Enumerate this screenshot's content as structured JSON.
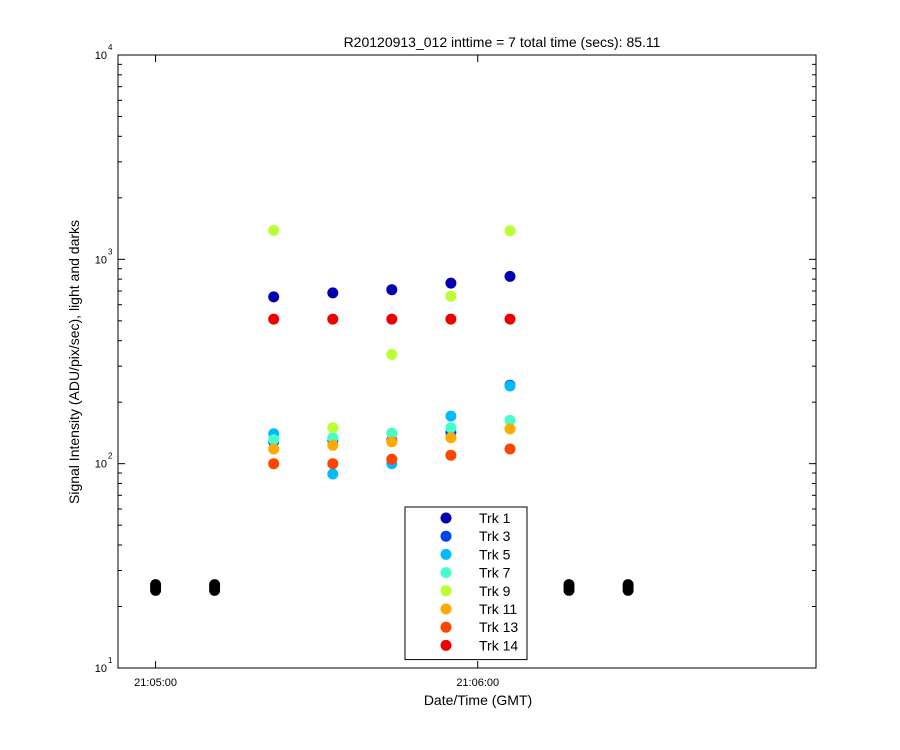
{
  "chart_data": {
    "type": "scatter",
    "title": "R20120913_012 inttime = 7 total time (secs): 85.11",
    "xlabel": "Date/Time (GMT)",
    "ylabel": "Signal Intensity (ADU/pix/sec), light and darks",
    "x_ticks": [
      {
        "time": "21:05:00",
        "label": "21:05:00"
      },
      {
        "time": "21:06:00",
        "label": "21:06:00"
      }
    ],
    "xlim": [
      "21:04:53",
      "21:07:03"
    ],
    "y_scale": "log",
    "ylim": [
      10,
      10000
    ],
    "y_ticks": [
      {
        "value": 10,
        "base": "10",
        "exp": "1"
      },
      {
        "value": 100,
        "base": "10",
        "exp": "2"
      },
      {
        "value": 1000,
        "base": "10",
        "exp": "3"
      },
      {
        "value": 10000,
        "base": "10",
        "exp": "4"
      }
    ],
    "grid": false,
    "legend_position": "bottom-center",
    "series": [
      {
        "name": "Trk 1",
        "color": "#0000b0",
        "x": [
          "21:05:22",
          "21:05:33",
          "21:05:44",
          "21:05:55",
          "21:06:06"
        ],
        "y": [
          655,
          685,
          710,
          765,
          825
        ]
      },
      {
        "name": "Trk 3",
        "color": "#0044ee",
        "x": [
          "21:05:22",
          "21:05:33",
          "21:05:44",
          "21:05:55",
          "21:06:06"
        ],
        "y": [
          128,
          130,
          130,
          142,
          242
        ]
      },
      {
        "name": "Trk 5",
        "color": "#00bbff",
        "x": [
          "21:05:22",
          "21:05:33",
          "21:05:44",
          "21:05:55",
          "21:06:06"
        ],
        "y": [
          140,
          89,
          100,
          171,
          240
        ]
      },
      {
        "name": "Trk 7",
        "color": "#44ffcc",
        "x": [
          "21:05:22",
          "21:05:33",
          "21:05:44",
          "21:05:55",
          "21:06:06"
        ],
        "y": [
          131,
          134,
          141,
          150,
          163
        ]
      },
      {
        "name": "Trk 9",
        "color": "#bbff33",
        "x": [
          "21:05:22",
          "21:05:33",
          "21:05:44",
          "21:05:55",
          "21:06:06"
        ],
        "y": [
          1385,
          150,
          342,
          660,
          1380
        ]
      },
      {
        "name": "Trk 11",
        "color": "#ffaa00",
        "x": [
          "21:05:22",
          "21:05:33",
          "21:05:44",
          "21:05:55",
          "21:06:06"
        ],
        "y": [
          118,
          123,
          128,
          134,
          148
        ]
      },
      {
        "name": "Trk 13",
        "color": "#ff4400",
        "x": [
          "21:05:22",
          "21:05:33",
          "21:05:44",
          "21:05:55",
          "21:06:06"
        ],
        "y": [
          100,
          100,
          105,
          110,
          118
        ]
      },
      {
        "name": "Trk 14",
        "color": "#ee0000",
        "x": [
          "21:05:22",
          "21:05:33",
          "21:05:44",
          "21:05:55",
          "21:06:06"
        ],
        "y": [
          510,
          510,
          510,
          510,
          510
        ]
      },
      {
        "color": "#000000",
        "x": [
          "21:05:00",
          "21:05:00",
          "21:05:00",
          "21:05:11",
          "21:05:11",
          "21:05:11",
          "21:06:17",
          "21:06:17",
          "21:06:17",
          "21:06:28",
          "21:06:28",
          "21:06:28"
        ],
        "y": [
          24.0,
          24.8,
          25.6,
          24.0,
          24.8,
          25.6,
          24.0,
          24.8,
          25.6,
          24.0,
          24.8,
          25.6
        ]
      }
    ]
  }
}
